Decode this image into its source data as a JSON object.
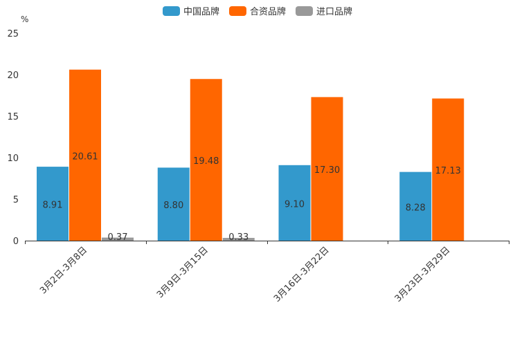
{
  "chart_data": {
    "type": "bar",
    "unit": "%",
    "categories": [
      "3月2日-3月8日",
      "3月9日-3月15日",
      "3月16日-3月22日",
      "3月23日-3月29日"
    ],
    "series": [
      {
        "name": "中国品牌",
        "color": "#3399cc",
        "values": [
          8.91,
          8.8,
          9.1,
          8.28
        ],
        "labels": [
          "8.91",
          "8.80",
          "9.10",
          "8.28"
        ]
      },
      {
        "name": "合资品牌",
        "color": "#ff6600",
        "values": [
          20.61,
          19.48,
          17.3,
          17.13
        ],
        "labels": [
          "20.61",
          "19.48",
          "17.30",
          "17.13"
        ]
      },
      {
        "name": "进口品牌",
        "color": "#999999",
        "values": [
          0.37,
          0.33,
          null,
          null
        ],
        "labels": [
          "0.37",
          "0.33",
          "",
          ""
        ]
      }
    ],
    "ylim": [
      0,
      25
    ],
    "yticks": [
      "0",
      "5",
      "10",
      "15",
      "20",
      "25"
    ],
    "xlabel": "",
    "ylabel": "%",
    "title": ""
  }
}
